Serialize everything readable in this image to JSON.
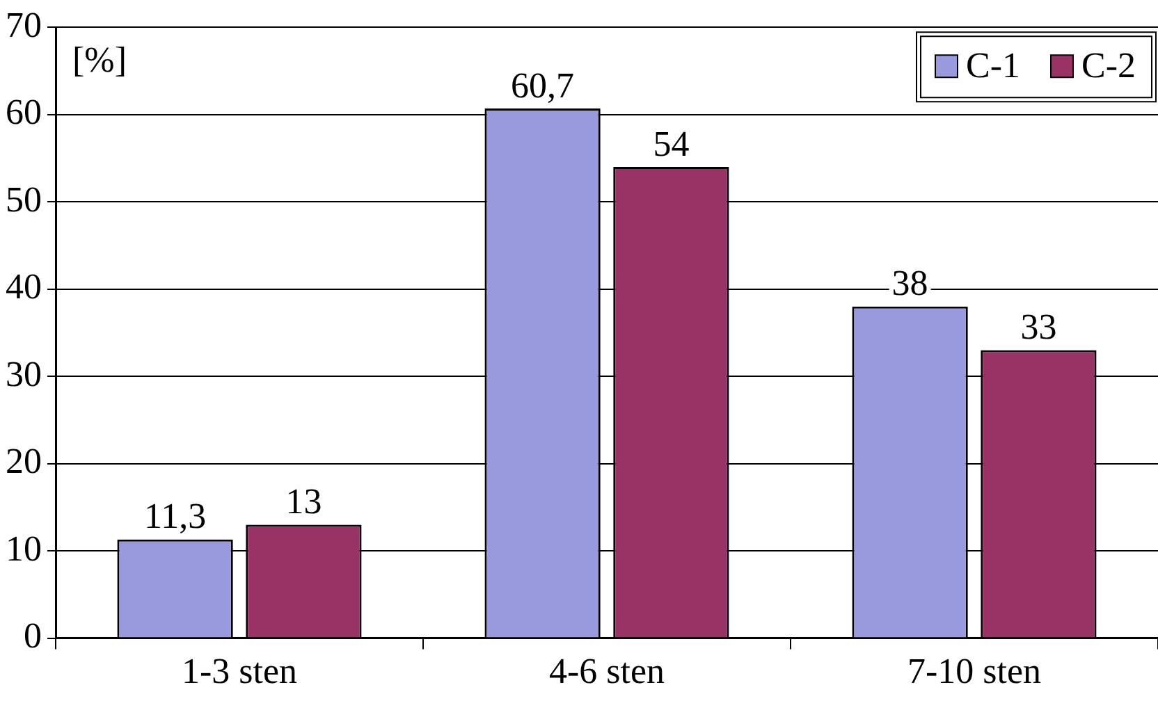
{
  "chart_data": {
    "type": "bar",
    "ylabel": "[%]",
    "categories": [
      "1-3 sten",
      "4-6 sten",
      "7-10 sten"
    ],
    "series": [
      {
        "name": "C-1",
        "color": "#9999dd",
        "values": [
          11.3,
          60.7,
          38
        ],
        "value_labels": [
          "11,3",
          "60,7",
          "38"
        ]
      },
      {
        "name": "C-2",
        "color": "#993366",
        "values": [
          13,
          54,
          33
        ],
        "value_labels": [
          "13",
          "54",
          "33"
        ]
      }
    ],
    "ylim": [
      0,
      70
    ],
    "yticks": [
      0,
      10,
      20,
      30,
      40,
      50,
      60,
      70
    ],
    "grid": "y",
    "legend": "top right"
  }
}
